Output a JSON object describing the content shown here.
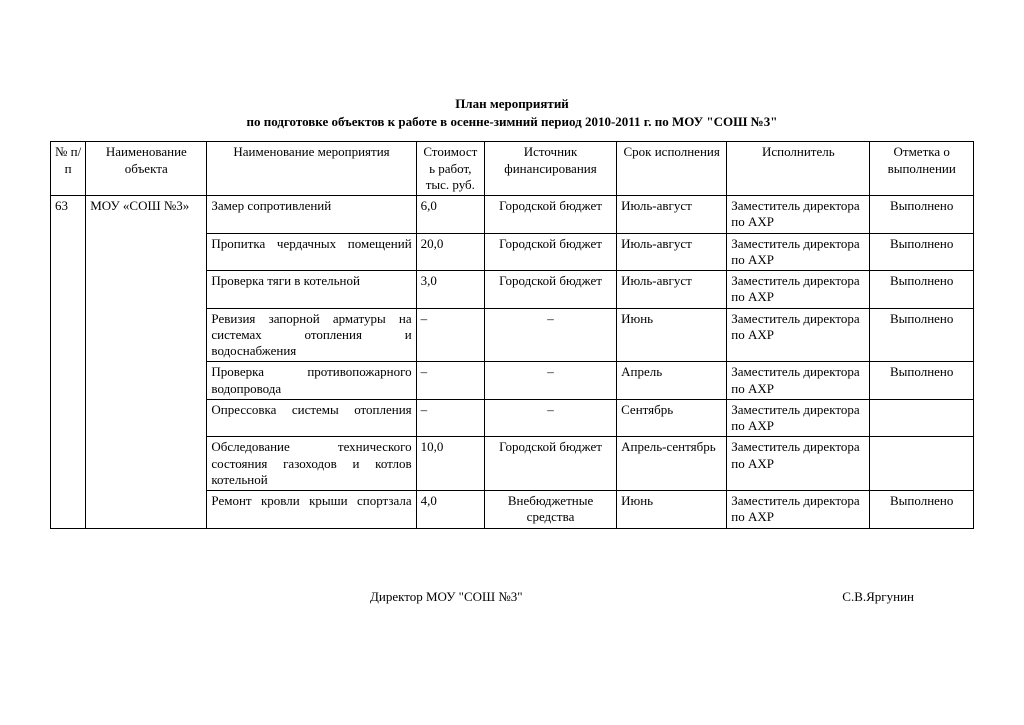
{
  "title_line1": "План мероприятий",
  "title_line2": "по подготовке объектов к работе в осенне-зимний период 2010-2011 г. по МОУ \"СОШ №3\"",
  "headers": {
    "num": "№ п/п",
    "obj": "Наименование объекта",
    "event": "Наименование мероприятия",
    "cost": "Стоимость работ, тыс. руб.",
    "src": "Источник финансирования",
    "term": "Срок исполнения",
    "exec": "Исполнитель",
    "mark": "Отметка о выполнении"
  },
  "row_num": "63",
  "row_obj": "МОУ «СОШ №3»",
  "rows": [
    {
      "event": "Замер сопротивлений",
      "event_justify": false,
      "cost": "6,0",
      "src": "Городской бюджет",
      "term": "Июль-август",
      "exec": "Заместитель директора по АХР",
      "mark": "Выполнено"
    },
    {
      "event": "Пропитка чердачных помещений",
      "event_justify": true,
      "cost": "20,0",
      "src": "Городской бюджет",
      "term": "Июль-август",
      "exec": "Заместитель директора по АХР",
      "mark": "Выполнено"
    },
    {
      "event": "Проверка тяги в котельной",
      "event_justify": false,
      "cost": "3,0",
      "src": "Городской бюджет",
      "term": "Июль-август",
      "exec": "Заместитель директора по АХР",
      "mark": "Выполнено"
    },
    {
      "event": "Ревизия запорной арматуры на системах отопления и водоснабжения",
      "event_justify": true,
      "cost": "–",
      "src": "–",
      "term": "Июнь",
      "exec": "Заместитель директора по АХР",
      "mark": "Выполнено"
    },
    {
      "event": "Проверка противопожарного водопровода",
      "event_justify": true,
      "cost": "–",
      "src": "–",
      "term": "Апрель",
      "exec": "Заместитель директора по АХР",
      "mark": "Выполнено"
    },
    {
      "event": "Опрессовка системы отопления",
      "event_justify": true,
      "cost": "–",
      "src": "–",
      "term": "Сентябрь",
      "exec": "Заместитель директора по АХР",
      "mark": ""
    },
    {
      "event": "Обследование технического состояния газоходов и котлов котельной",
      "event_justify": true,
      "cost": "10,0",
      "src": "Городской бюджет",
      "term": "Апрель-сентябрь",
      "exec": "Заместитель директора по АХР",
      "mark": ""
    },
    {
      "event": "Ремонт кровли крыши спортзала",
      "event_justify": true,
      "cost": "4,0",
      "src": "Внебюджетные средства",
      "term": "Июнь",
      "exec": "Заместитель директора по АХР",
      "mark": "Выполнено"
    }
  ],
  "sign_role": "Директор МОУ \"СОШ №3\"",
  "sign_name": "С.В.Яргунин"
}
